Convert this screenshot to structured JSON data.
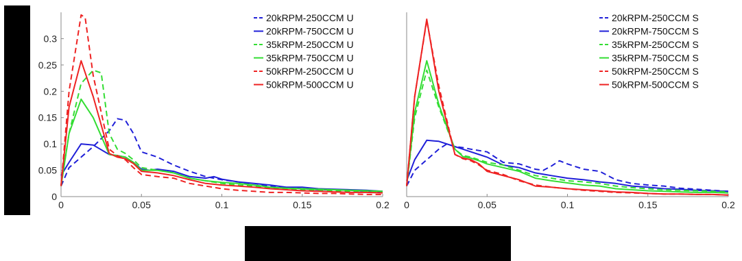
{
  "chart_data": [
    {
      "type": "line",
      "xlim": [
        0,
        0.2
      ],
      "ylim": [
        0,
        0.35
      ],
      "xticks": [
        "0",
        "0.05",
        "0.1",
        "0.15",
        "0.2"
      ],
      "yticks": [
        "0",
        "0.05",
        "0.1",
        "0.15",
        "0.2",
        "0.25",
        "0.3"
      ],
      "legend_position": "top-right",
      "grid": false,
      "series": [
        {
          "name": "20kRPM-250CCM U",
          "color": "#1f1fd8",
          "dash": true,
          "x": [
            0,
            0.005,
            0.0125,
            0.02,
            0.03,
            0.035,
            0.04,
            0.045,
            0.05,
            0.06,
            0.07,
            0.08,
            0.09,
            0.1,
            0.11,
            0.12,
            0.13,
            0.14,
            0.15,
            0.16,
            0.17,
            0.18,
            0.19,
            0.2
          ],
          "y": [
            0.02,
            0.055,
            0.075,
            0.095,
            0.125,
            0.148,
            0.145,
            0.12,
            0.085,
            0.075,
            0.06,
            0.048,
            0.038,
            0.032,
            0.028,
            0.022,
            0.02,
            0.018,
            0.015,
            0.013,
            0.013,
            0.012,
            0.01,
            0.008
          ]
        },
        {
          "name": "20kRPM-750CCM U",
          "color": "#1f1fd8",
          "dash": false,
          "x": [
            0,
            0.005,
            0.0125,
            0.02,
            0.03,
            0.035,
            0.04,
            0.045,
            0.05,
            0.055,
            0.06,
            0.07,
            0.08,
            0.09,
            0.095,
            0.1,
            0.11,
            0.12,
            0.13,
            0.14,
            0.15,
            0.16,
            0.17,
            0.18,
            0.19,
            0.2
          ],
          "y": [
            0.04,
            0.065,
            0.1,
            0.098,
            0.08,
            0.078,
            0.075,
            0.065,
            0.052,
            0.05,
            0.052,
            0.048,
            0.038,
            0.035,
            0.038,
            0.033,
            0.028,
            0.025,
            0.022,
            0.018,
            0.018,
            0.015,
            0.014,
            0.013,
            0.012,
            0.01
          ]
        },
        {
          "name": "35kRPM-250CCM U",
          "color": "#33dd33",
          "dash": true,
          "x": [
            0,
            0.005,
            0.0125,
            0.02,
            0.025,
            0.03,
            0.035,
            0.04,
            0.045,
            0.05,
            0.06,
            0.07,
            0.08,
            0.09,
            0.1,
            0.11,
            0.12,
            0.13,
            0.14,
            0.15,
            0.16,
            0.17,
            0.18,
            0.19,
            0.2
          ],
          "y": [
            0.02,
            0.12,
            0.215,
            0.24,
            0.235,
            0.12,
            0.09,
            0.082,
            0.07,
            0.055,
            0.05,
            0.045,
            0.035,
            0.03,
            0.025,
            0.022,
            0.02,
            0.017,
            0.015,
            0.013,
            0.012,
            0.011,
            0.01,
            0.009,
            0.008
          ]
        },
        {
          "name": "35kRPM-750CCM U",
          "color": "#33dd33",
          "dash": false,
          "x": [
            0,
            0.005,
            0.0125,
            0.02,
            0.03,
            0.035,
            0.04,
            0.045,
            0.05,
            0.06,
            0.07,
            0.08,
            0.09,
            0.1,
            0.11,
            0.12,
            0.13,
            0.14,
            0.15,
            0.16,
            0.17,
            0.18,
            0.19,
            0.2
          ],
          "y": [
            0.02,
            0.12,
            0.185,
            0.15,
            0.08,
            0.078,
            0.075,
            0.065,
            0.05,
            0.05,
            0.045,
            0.035,
            0.03,
            0.027,
            0.025,
            0.022,
            0.018,
            0.016,
            0.015,
            0.014,
            0.013,
            0.012,
            0.011,
            0.01
          ]
        },
        {
          "name": "50kRPM-250CCM U",
          "color": "#ee2222",
          "dash": true,
          "x": [
            0,
            0.005,
            0.0125,
            0.015,
            0.02,
            0.03,
            0.035,
            0.04,
            0.045,
            0.05,
            0.06,
            0.07,
            0.08,
            0.09,
            0.1,
            0.11,
            0.12,
            0.13,
            0.14,
            0.15,
            0.16,
            0.17,
            0.18,
            0.19,
            0.2
          ],
          "y": [
            0.02,
            0.2,
            0.345,
            0.34,
            0.23,
            0.09,
            0.078,
            0.07,
            0.055,
            0.042,
            0.038,
            0.035,
            0.025,
            0.02,
            0.015,
            0.012,
            0.01,
            0.008,
            0.008,
            0.007,
            0.006,
            0.006,
            0.005,
            0.004,
            0.004
          ]
        },
        {
          "name": "50kRPM-500CCM U",
          "color": "#ee2222",
          "dash": false,
          "x": [
            0,
            0.005,
            0.0125,
            0.02,
            0.03,
            0.035,
            0.04,
            0.045,
            0.05,
            0.06,
            0.07,
            0.08,
            0.09,
            0.1,
            0.11,
            0.12,
            0.13,
            0.14,
            0.15,
            0.16,
            0.17,
            0.18,
            0.19,
            0.2
          ],
          "y": [
            0.02,
            0.17,
            0.258,
            0.19,
            0.082,
            0.075,
            0.072,
            0.063,
            0.048,
            0.045,
            0.04,
            0.032,
            0.025,
            0.022,
            0.02,
            0.018,
            0.015,
            0.013,
            0.011,
            0.01,
            0.009,
            0.008,
            0.008,
            0.007
          ]
        }
      ]
    },
    {
      "type": "line",
      "xlim": [
        0,
        0.2
      ],
      "ylim": [
        0,
        0.35
      ],
      "xticks": [
        "0",
        "0.05",
        "0.1",
        "0.15",
        "0.2"
      ],
      "yticks": [],
      "legend_position": "top-right",
      "grid": false,
      "series": [
        {
          "name": "20kRPM-250CCM S",
          "color": "#1f1fd8",
          "dash": true,
          "x": [
            0,
            0.005,
            0.0125,
            0.02,
            0.025,
            0.03,
            0.035,
            0.04,
            0.05,
            0.06,
            0.07,
            0.08,
            0.085,
            0.09,
            0.095,
            0.1,
            0.11,
            0.12,
            0.13,
            0.14,
            0.15,
            0.16,
            0.17,
            0.18,
            0.19,
            0.2
          ],
          "y": [
            0.02,
            0.05,
            0.07,
            0.09,
            0.1,
            0.095,
            0.093,
            0.09,
            0.085,
            0.065,
            0.062,
            0.052,
            0.05,
            0.058,
            0.068,
            0.062,
            0.052,
            0.048,
            0.032,
            0.025,
            0.022,
            0.02,
            0.016,
            0.014,
            0.012,
            0.01
          ]
        },
        {
          "name": "20kRPM-750CCM S",
          "color": "#1f1fd8",
          "dash": false,
          "x": [
            0,
            0.005,
            0.0125,
            0.02,
            0.03,
            0.035,
            0.04,
            0.045,
            0.05,
            0.06,
            0.07,
            0.08,
            0.09,
            0.1,
            0.11,
            0.12,
            0.13,
            0.14,
            0.15,
            0.16,
            0.17,
            0.18,
            0.19,
            0.2
          ],
          "y": [
            0.03,
            0.07,
            0.107,
            0.105,
            0.095,
            0.09,
            0.085,
            0.08,
            0.075,
            0.06,
            0.055,
            0.045,
            0.04,
            0.035,
            0.032,
            0.028,
            0.025,
            0.02,
            0.018,
            0.015,
            0.014,
            0.012,
            0.011,
            0.01
          ]
        },
        {
          "name": "35kRPM-250CCM S",
          "color": "#33dd33",
          "dash": true,
          "x": [
            0,
            0.005,
            0.0125,
            0.02,
            0.03,
            0.035,
            0.04,
            0.045,
            0.05,
            0.06,
            0.07,
            0.08,
            0.09,
            0.1,
            0.11,
            0.12,
            0.13,
            0.14,
            0.15,
            0.16,
            0.17,
            0.18,
            0.19,
            0.2
          ],
          "y": [
            0.02,
            0.15,
            0.24,
            0.17,
            0.09,
            0.078,
            0.075,
            0.07,
            0.065,
            0.06,
            0.05,
            0.04,
            0.035,
            0.03,
            0.028,
            0.025,
            0.02,
            0.017,
            0.015,
            0.013,
            0.012,
            0.011,
            0.01,
            0.009
          ]
        },
        {
          "name": "35kRPM-750CCM S",
          "color": "#33dd33",
          "dash": false,
          "x": [
            0,
            0.005,
            0.0125,
            0.02,
            0.03,
            0.035,
            0.04,
            0.045,
            0.05,
            0.06,
            0.07,
            0.08,
            0.09,
            0.1,
            0.11,
            0.12,
            0.13,
            0.14,
            0.15,
            0.16,
            0.17,
            0.18,
            0.19,
            0.2
          ],
          "y": [
            0.02,
            0.16,
            0.258,
            0.175,
            0.09,
            0.076,
            0.073,
            0.068,
            0.062,
            0.055,
            0.048,
            0.035,
            0.03,
            0.026,
            0.022,
            0.02,
            0.015,
            0.013,
            0.011,
            0.01,
            0.009,
            0.008,
            0.008,
            0.007
          ]
        },
        {
          "name": "50kRPM-250CCM S",
          "color": "#ee2222",
          "dash": true,
          "x": [
            0,
            0.005,
            0.0125,
            0.02,
            0.03,
            0.035,
            0.04,
            0.045,
            0.05,
            0.06,
            0.07,
            0.08,
            0.09,
            0.1,
            0.11,
            0.12,
            0.13,
            0.14,
            0.15,
            0.16,
            0.17,
            0.18,
            0.19,
            0.2
          ],
          "y": [
            0.02,
            0.19,
            0.335,
            0.21,
            0.08,
            0.072,
            0.068,
            0.06,
            0.05,
            0.042,
            0.03,
            0.022,
            0.018,
            0.015,
            0.012,
            0.01,
            0.008,
            0.007,
            0.006,
            0.005,
            0.005,
            0.004,
            0.004,
            0.003
          ]
        },
        {
          "name": "50kRPM-500CCM S",
          "color": "#ee2222",
          "dash": false,
          "x": [
            0,
            0.005,
            0.0125,
            0.02,
            0.03,
            0.035,
            0.04,
            0.045,
            0.05,
            0.06,
            0.07,
            0.08,
            0.09,
            0.1,
            0.11,
            0.12,
            0.13,
            0.14,
            0.15,
            0.16,
            0.17,
            0.18,
            0.19,
            0.2
          ],
          "y": [
            0.02,
            0.19,
            0.337,
            0.2,
            0.08,
            0.073,
            0.07,
            0.062,
            0.048,
            0.04,
            0.032,
            0.02,
            0.018,
            0.015,
            0.013,
            0.011,
            0.009,
            0.008,
            0.006,
            0.005,
            0.005,
            0.004,
            0.004,
            0.003
          ]
        }
      ]
    }
  ]
}
